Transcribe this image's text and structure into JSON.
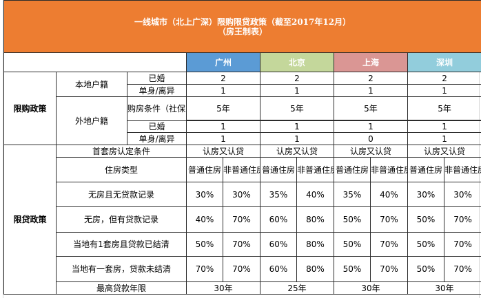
{
  "title": {
    "line1": "一线城市（北上广深）限购限贷政策（截至2017年12月）",
    "line2": "（房王制表）"
  },
  "cities": [
    {
      "name": "广州",
      "color": "#5b9bd5"
    },
    {
      "name": "北京",
      "color": "#c4d79b"
    },
    {
      "name": "上海",
      "color": "#da9694"
    },
    {
      "name": "深圳",
      "color": "#92cddc"
    }
  ],
  "purchase": {
    "section_label": "限购政策",
    "local_label": "本地户籍",
    "nonlocal_label": "外地户籍",
    "rows": {
      "married": "已婚",
      "single": "单身/离异",
      "condition": "购房条件（社保或税"
    },
    "local_married": [
      "2",
      "2",
      "2",
      "2"
    ],
    "local_single": [
      "1",
      "1",
      "1",
      "1"
    ],
    "nonlocal_condition": [
      "5年",
      "5年",
      "5年",
      "5年"
    ],
    "nonlocal_married": [
      "1",
      "1",
      "1",
      "1"
    ],
    "nonlocal_single": [
      "1",
      "1",
      "0",
      "1"
    ]
  },
  "loan": {
    "section_label": "限贷政策",
    "first_home_label": "首套房认定条件",
    "first_home_values": [
      "认房又认贷",
      "认房又认贷",
      "认房又认贷",
      "认房又认贷"
    ],
    "housing_type_label": "住房类型",
    "types": [
      "普通住房",
      "非普通住房"
    ],
    "rows": [
      {
        "label": "无房且无贷款记录",
        "values": [
          "30%",
          "30%",
          "35%",
          "40%",
          "35%",
          "40%",
          "30%",
          "30%"
        ]
      },
      {
        "label": "无房，但有贷款记录",
        "values": [
          "40%",
          "70%",
          "60%",
          "80%",
          "50%",
          "70%",
          "50%",
          "70%"
        ]
      },
      {
        "label": "当地有1套房且贷款已结清",
        "values": [
          "50%",
          "70%",
          "60%",
          "80%",
          "50%",
          "70%",
          "50%",
          "70%"
        ]
      },
      {
        "label": "当地有一套房，贷款未结清",
        "values": [
          "70%",
          "70%",
          "60%",
          "80%",
          "50%",
          "70%",
          "50%",
          "70%"
        ]
      }
    ],
    "max_term_label": "最高贷款年限",
    "max_term_values": [
      "30年",
      "25年",
      "30年",
      "30年"
    ]
  }
}
